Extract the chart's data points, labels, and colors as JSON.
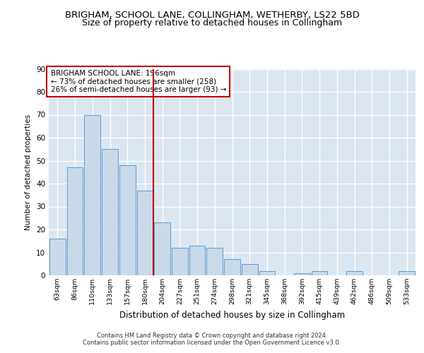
{
  "title": "BRIGHAM, SCHOOL LANE, COLLINGHAM, WETHERBY, LS22 5BD",
  "subtitle": "Size of property relative to detached houses in Collingham",
  "xlabel": "Distribution of detached houses by size in Collingham",
  "ylabel": "Number of detached properties",
  "categories": [
    "63sqm",
    "86sqm",
    "110sqm",
    "133sqm",
    "157sqm",
    "180sqm",
    "204sqm",
    "227sqm",
    "251sqm",
    "274sqm",
    "298sqm",
    "321sqm",
    "345sqm",
    "368sqm",
    "392sqm",
    "415sqm",
    "439sqm",
    "462sqm",
    "486sqm",
    "509sqm",
    "533sqm"
  ],
  "values": [
    16,
    47,
    70,
    55,
    48,
    37,
    23,
    12,
    13,
    12,
    7,
    5,
    2,
    0,
    1,
    2,
    0,
    2,
    0,
    0,
    2
  ],
  "bar_color": "#c9d9e8",
  "bar_edge_color": "#5b9bd5",
  "vline_x": 5.5,
  "vline_color": "#c00000",
  "annotation_text": "BRIGHAM SCHOOL LANE: 196sqm\n← 73% of detached houses are smaller (258)\n26% of semi-detached houses are larger (93) →",
  "annotation_box_color": "#ffffff",
  "annotation_box_edge_color": "#c00000",
  "ylim": [
    0,
    90
  ],
  "yticks": [
    0,
    10,
    20,
    30,
    40,
    50,
    60,
    70,
    80,
    90
  ],
  "background_color": "#dce6f0",
  "grid_color": "#ffffff",
  "footer_line1": "Contains HM Land Registry data © Crown copyright and database right 2024.",
  "footer_line2": "Contains public sector information licensed under the Open Government Licence v3.0.",
  "title_fontsize": 9.5,
  "subtitle_fontsize": 9,
  "xlabel_fontsize": 8.5,
  "ylabel_fontsize": 7.5,
  "annot_fontsize": 7.5,
  "footer_fontsize": 6.0
}
